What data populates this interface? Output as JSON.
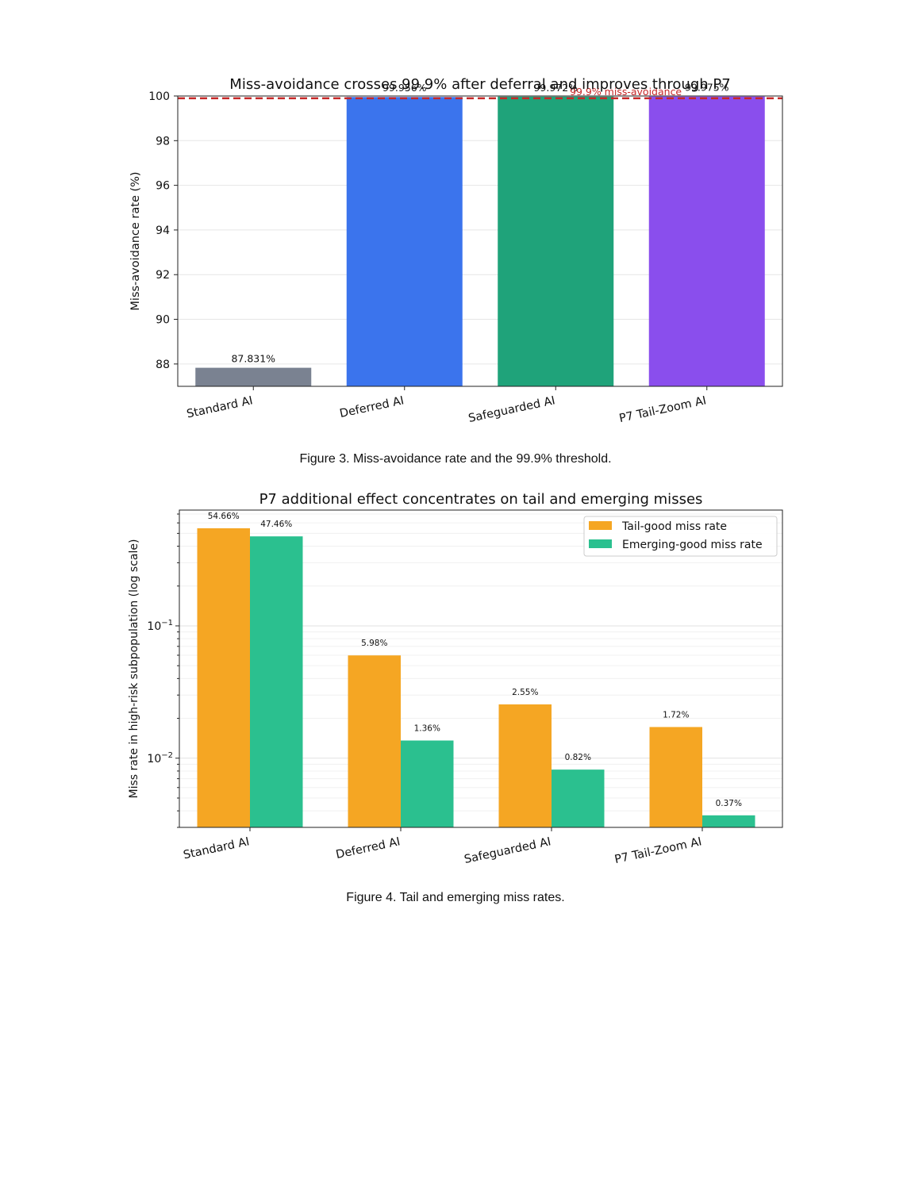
{
  "figures": [
    {
      "caption": "Figure 3. Miss-avoidance rate and the 99.9% threshold.",
      "chart_data": {
        "type": "bar",
        "title": "Miss-avoidance crosses 99.9% after deferral and improves through P7",
        "xlabel": "",
        "ylabel": "Miss-avoidance rate (%)",
        "ylim": [
          87,
          100
        ],
        "yticks": [
          88,
          90,
          92,
          94,
          96,
          98,
          100
        ],
        "grid": true,
        "categories": [
          "Standard AI",
          "Deferred AI",
          "Safeguarded AI",
          "P7 Tail-Zoom AI"
        ],
        "values": [
          87.831,
          99.956,
          99.972,
          99.975
        ],
        "data_labels": [
          "87.831%",
          "99.956%",
          "99.972%",
          "99.975%"
        ],
        "colors": [
          "#7a8291",
          "#3b74ed",
          "#1fa37a",
          "#8a4eed"
        ],
        "threshold": {
          "value": 99.9,
          "label": "99.9% miss-avoidance",
          "color": "#c62828"
        }
      }
    },
    {
      "caption": "Figure 4. Tail and emerging miss rates.",
      "chart_data": {
        "type": "bar",
        "title": "P7 additional effect concentrates on tail and emerging misses",
        "xlabel": "",
        "ylabel": "Miss rate in high-risk subpopulation (log scale)",
        "yscale": "log",
        "ylim": [
          0.003,
          0.75
        ],
        "grid": true,
        "legend": "top-right",
        "categories": [
          "Standard AI",
          "Deferred AI",
          "Safeguarded AI",
          "P7 Tail-Zoom AI"
        ],
        "series": [
          {
            "name": "Tail-good miss rate",
            "color": "#f5a623",
            "values": [
              0.5466,
              0.0598,
              0.0255,
              0.0172
            ],
            "labels": [
              "54.66%",
              "5.98%",
              "2.55%",
              "1.72%"
            ]
          },
          {
            "name": "Emerging-good miss rate",
            "color": "#2bc08f",
            "values": [
              0.4746,
              0.0136,
              0.0082,
              0.0037
            ],
            "labels": [
              "47.46%",
              "1.36%",
              "0.82%",
              "0.37%"
            ]
          }
        ]
      }
    }
  ]
}
